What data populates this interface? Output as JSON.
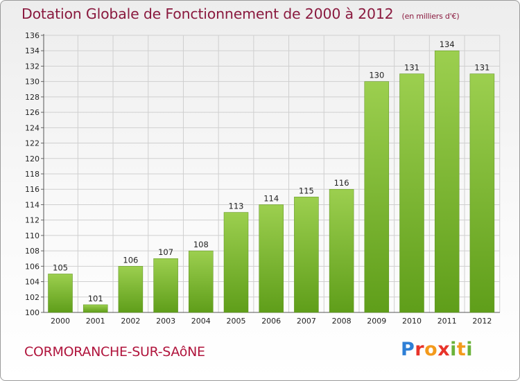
{
  "header": {
    "title": "Dotation Globale de Fonctionnement de 2000 à 2012",
    "unit": "(en milliers d'€)"
  },
  "footer": {
    "town": "CORMORANCHE-SUR-SAôNE",
    "logo": {
      "text": "Proxiti",
      "letter_colors": [
        "#2e7fd6",
        "#e8332a",
        "#f39a1c",
        "#e8332a",
        "#6bb33a",
        "#f39a1c",
        "#6bb33a"
      ]
    }
  },
  "colors": {
    "bar_top": "#9ccf4f",
    "bar_bottom": "#5f9e1a",
    "grid": "#cfcfcf",
    "title": "#8a1a3f",
    "town": "#b0143c"
  },
  "chart_data": {
    "type": "bar",
    "categories": [
      "2000",
      "2001",
      "2002",
      "2003",
      "2004",
      "2005",
      "2006",
      "2007",
      "2008",
      "2009",
      "2010",
      "2011",
      "2012"
    ],
    "values": [
      105,
      101,
      106,
      107,
      108,
      113,
      114,
      115,
      116,
      130,
      131,
      134,
      131
    ],
    "title": "Dotation Globale de Fonctionnement de 2000 à 2012",
    "ylim": [
      100,
      136
    ],
    "yticks": [
      100,
      102,
      104,
      106,
      108,
      110,
      112,
      114,
      116,
      118,
      120,
      122,
      124,
      126,
      128,
      130,
      132,
      134,
      136
    ],
    "grid": true,
    "legend": "none"
  }
}
